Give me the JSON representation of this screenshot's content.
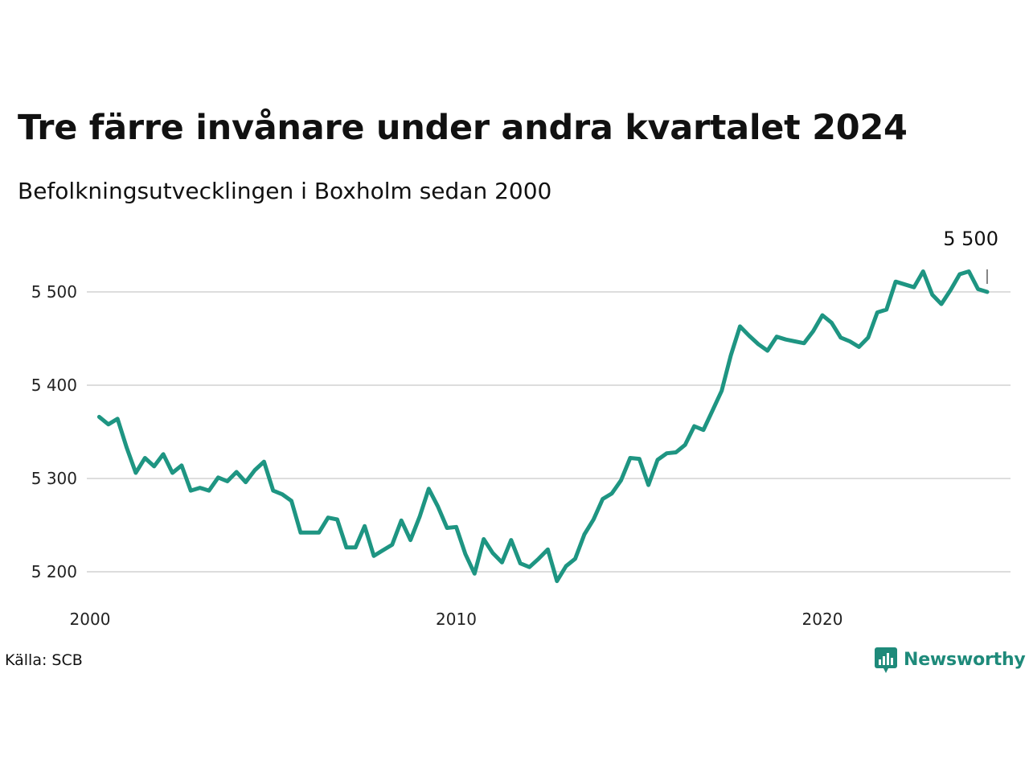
{
  "title": "Tre färre invånare under andra kvartalet 2024",
  "subtitle": "Befolkningsutvecklingen i Boxholm sedan 2000",
  "source": "Källa: SCB",
  "brand": {
    "name": "Newsworthy",
    "color": "#1e8a7a",
    "icon": "bar-chart-speech-bubble-icon"
  },
  "chart_data": {
    "type": "line",
    "title": "Tre färre invånare under andra kvartalet 2024",
    "subtitle": "Befolkningsutvecklingen i Boxholm sedan 2000",
    "xlabel": "",
    "ylabel": "",
    "x_ticks": [
      2000,
      2010,
      2020
    ],
    "x_tick_labels": [
      "2000",
      "2010",
      "2020"
    ],
    "xlim": [
      2000,
      2025.3
    ],
    "y_ticks": [
      5200,
      5300,
      5400,
      5500
    ],
    "y_tick_labels": [
      "5 200",
      "5 300",
      "5 400",
      "5 500"
    ],
    "ylim": [
      5175,
      5600
    ],
    "grid": "horizontal",
    "line_color": "#1e9582",
    "last_value_label": "5 500",
    "series": [
      {
        "x": [
          2000.25,
          2000.5,
          2000.75,
          2001,
          2001.25,
          2001.5,
          2001.75,
          2002,
          2002.25,
          2002.5,
          2002.75,
          2003,
          2003.25,
          2003.5,
          2003.75,
          2004,
          2004.25,
          2004.5,
          2004.75,
          2005,
          2005.25,
          2005.5,
          2005.75,
          2006,
          2006.25,
          2006.5,
          2006.75,
          2007,
          2007.25,
          2007.5,
          2007.75,
          2008,
          2008.25,
          2008.5,
          2008.75,
          2009,
          2009.25,
          2009.5,
          2009.75,
          2010,
          2010.25,
          2010.5,
          2010.75,
          2011,
          2011.25,
          2011.5,
          2011.75,
          2012,
          2012.25,
          2012.5,
          2012.75,
          2013,
          2013.25,
          2013.5,
          2013.75,
          2014,
          2014.25,
          2014.5,
          2014.75,
          2015,
          2015.25,
          2015.5,
          2015.75,
          2016,
          2016.25,
          2016.5,
          2016.75,
          2017,
          2017.25,
          2017.5,
          2017.75,
          2018,
          2018.25,
          2018.5,
          2018.75,
          2019,
          2019.25,
          2019.5,
          2019.75,
          2020,
          2020.25,
          2020.5,
          2020.75,
          2021,
          2021.25,
          2021.5,
          2021.75,
          2022,
          2022.25,
          2022.5,
          2022.75,
          2023,
          2023.25,
          2023.5,
          2023.75,
          2024,
          2024.25,
          2024.5
        ],
        "values": [
          5366,
          5358,
          5364,
          5333,
          5306,
          5322,
          5313,
          5326,
          5306,
          5314,
          5287,
          5290,
          5287,
          5301,
          5297,
          5307,
          5296,
          5309,
          5318,
          5287,
          5283,
          5276,
          5242,
          5242,
          5242,
          5258,
          5256,
          5226,
          5226,
          5249,
          5217,
          5223,
          5229,
          5255,
          5234,
          5259,
          5289,
          5270,
          5247,
          5248,
          5219,
          5198,
          5235,
          5220,
          5210,
          5234,
          5209,
          5205,
          5214,
          5224,
          5190,
          5206,
          5214,
          5240,
          5256,
          5278,
          5284,
          5298,
          5322,
          5321,
          5293,
          5320,
          5327,
          5328,
          5336,
          5356,
          5352,
          5373,
          5394,
          5432,
          5463,
          5453,
          5444,
          5437,
          5452,
          5449,
          5447,
          5445,
          5458,
          5475,
          5467,
          5451,
          5447,
          5441,
          5451,
          5478,
          5481,
          5511,
          5508,
          5505,
          5522,
          5497,
          5487,
          5502,
          5519,
          5522,
          5503,
          5500
        ]
      }
    ]
  }
}
